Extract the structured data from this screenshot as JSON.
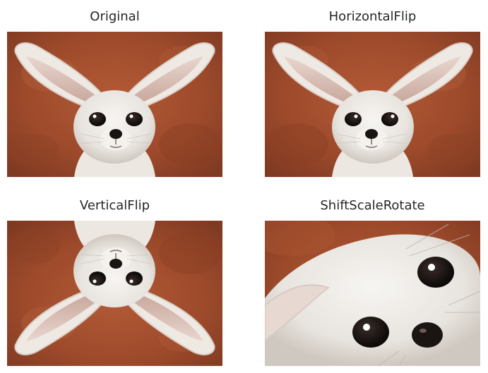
{
  "panels": [
    {
      "title": "Original"
    },
    {
      "title": "HorizontalFlip"
    },
    {
      "title": "VerticalFlip"
    },
    {
      "title": "ShiftScaleRotate"
    }
  ]
}
